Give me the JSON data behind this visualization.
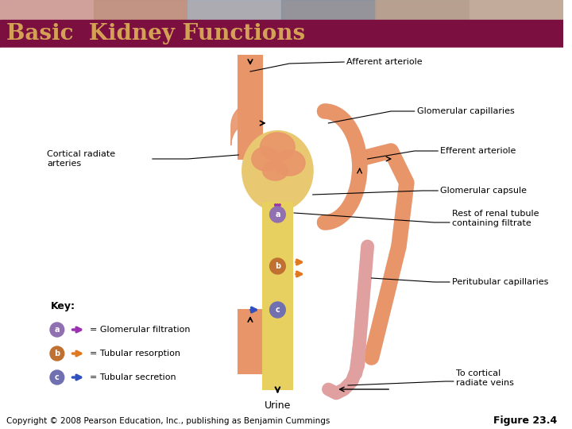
{
  "title": "Basic  Kidney Functions",
  "title_color": "#D4A055",
  "title_bg_color": "#7B1040",
  "title_fontsize": 20,
  "bg_color": "#FFFFFF",
  "header_image_color": "#C8A090",
  "copyright_text": "Copyright © 2008 Pearson Education, Inc., publishing as Benjamin Cummings",
  "figure_label": "Figure 23.4",
  "labels": {
    "afferent_arteriole": "Afferent arteriole",
    "glomerular_capillaries": "Glomerular capillaries",
    "efferent_arteriole": "Efferent arteriole",
    "glomerular_capsule": "Glomerular capsule",
    "cortical_radiate": "Cortical radiate\narteries",
    "rest_renal_tubule": "Rest of renal tubule\ncontaining filtrate",
    "peritubular": "Peritubular capillaries",
    "to_cortical": "To cortical\nradiate veins",
    "urine": "Urine"
  },
  "key_title": "Key:",
  "key_items": [
    {
      "label": "a",
      "text": "= Glomerular filtration",
      "arrow_color": "#9B30B0",
      "circle_color": "#9070B0"
    },
    {
      "label": "b",
      "text": "= Tubular resorption",
      "arrow_color": "#E07820",
      "circle_color": "#C07030"
    },
    {
      "label": "c",
      "text": "= Tubular secretion",
      "arrow_color": "#3050C0",
      "circle_color": "#7070B0"
    }
  ],
  "colors": {
    "arteriole_fill": "#E8956A",
    "arteriole_outline": "#C87050",
    "glomerulus_fill": "#E8956A",
    "capsule_fill": "#E8C870",
    "tubule_fill": "#E8D060",
    "tubule_outline": "#C0A030",
    "peritubular_fill": "#E0A0A0",
    "peritubular_outline": "#C08080",
    "arrow_down_color": "#9B30B0",
    "arrow_b_color": "#E07820",
    "arrow_c_color": "#3050C0"
  }
}
